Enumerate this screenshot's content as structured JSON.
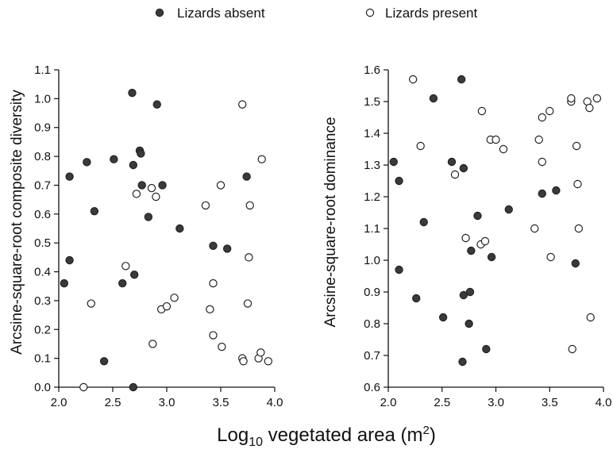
{
  "legend": {
    "placement": "top-center",
    "items": [
      {
        "label": "Lizards absent",
        "marker": "filled"
      },
      {
        "label": "Lizards present",
        "marker": "open"
      }
    ]
  },
  "shared_xlabel": {
    "prefix": "Log",
    "subscript": "10",
    "middle": " vegetated area (m",
    "superscript": "2",
    "suffix": ")"
  },
  "colors": {
    "filled_marker": "#3a3a3a",
    "open_marker_fill": "#ffffff",
    "marker_stroke": "#222222",
    "axis": "#111111"
  },
  "chart_data": [
    {
      "type": "scatter",
      "ylabel": "Arcsine-square-root composite diversity",
      "xlim": [
        2.0,
        4.0
      ],
      "ylim": [
        0.0,
        1.1
      ],
      "xticks": [
        "2.0",
        "2.5",
        "3.0",
        "3.5",
        "4.0"
      ],
      "yticks": [
        "0.0",
        "0.1",
        "0.2",
        "0.3",
        "0.4",
        "0.5",
        "0.6",
        "0.7",
        "0.8",
        "0.9",
        "1.0",
        "1.1"
      ],
      "grid": false,
      "series": [
        {
          "name": "Lizards absent",
          "points": [
            [
              2.05,
              0.36
            ],
            [
              2.1,
              0.44
            ],
            [
              2.1,
              0.73
            ],
            [
              2.26,
              0.78
            ],
            [
              2.33,
              0.61
            ],
            [
              2.42,
              0.09
            ],
            [
              2.51,
              0.79
            ],
            [
              2.59,
              0.36
            ],
            [
              2.68,
              1.02
            ],
            [
              2.69,
              0.77
            ],
            [
              2.7,
              0.39
            ],
            [
              2.69,
              0.0
            ],
            [
              2.75,
              0.82
            ],
            [
              2.76,
              0.81
            ],
            [
              2.77,
              0.7
            ],
            [
              2.83,
              0.59
            ],
            [
              2.91,
              0.98
            ],
            [
              2.96,
              0.7
            ],
            [
              3.12,
              0.55
            ],
            [
              3.43,
              0.49
            ],
            [
              3.56,
              0.48
            ],
            [
              3.74,
              0.73
            ]
          ]
        },
        {
          "name": "Lizards present",
          "points": [
            [
              2.23,
              0.0
            ],
            [
              2.3,
              0.29
            ],
            [
              2.62,
              0.42
            ],
            [
              2.72,
              0.67
            ],
            [
              2.86,
              0.69
            ],
            [
              2.87,
              0.15
            ],
            [
              2.9,
              0.66
            ],
            [
              2.95,
              0.27
            ],
            [
              3.0,
              0.28
            ],
            [
              3.07,
              0.31
            ],
            [
              3.36,
              0.63
            ],
            [
              3.4,
              0.27
            ],
            [
              3.43,
              0.36
            ],
            [
              3.43,
              0.18
            ],
            [
              3.5,
              0.7
            ],
            [
              3.51,
              0.14
            ],
            [
              3.7,
              0.98
            ],
            [
              3.7,
              0.1
            ],
            [
              3.71,
              0.09
            ],
            [
              3.75,
              0.29
            ],
            [
              3.76,
              0.45
            ],
            [
              3.77,
              0.63
            ],
            [
              3.85,
              0.1
            ],
            [
              3.87,
              0.12
            ],
            [
              3.88,
              0.79
            ],
            [
              3.94,
              0.09
            ]
          ]
        }
      ]
    },
    {
      "type": "scatter",
      "ylabel": "Arcsine-square-root dominance",
      "xlim": [
        2.0,
        4.0
      ],
      "ylim": [
        0.6,
        1.6
      ],
      "xticks": [
        "2.0",
        "2.5",
        "3.0",
        "3.5",
        "4.0"
      ],
      "yticks": [
        "0.6",
        "0.7",
        "0.8",
        "0.9",
        "1.0",
        "1.1",
        "1.2",
        "1.3",
        "1.4",
        "1.5",
        "1.6"
      ],
      "grid": false,
      "series": [
        {
          "name": "Lizards absent",
          "points": [
            [
              2.05,
              1.31
            ],
            [
              2.1,
              1.25
            ],
            [
              2.1,
              0.97
            ],
            [
              2.26,
              0.88
            ],
            [
              2.33,
              1.12
            ],
            [
              2.42,
              1.51
            ],
            [
              2.51,
              0.82
            ],
            [
              2.59,
              1.31
            ],
            [
              2.68,
              1.57
            ],
            [
              2.69,
              0.68
            ],
            [
              2.7,
              1.29
            ],
            [
              2.7,
              0.89
            ],
            [
              2.75,
              0.8
            ],
            [
              2.76,
              0.9
            ],
            [
              2.77,
              1.03
            ],
            [
              2.83,
              1.14
            ],
            [
              2.91,
              0.72
            ],
            [
              2.96,
              1.01
            ],
            [
              3.12,
              1.16
            ],
            [
              3.43,
              1.21
            ],
            [
              3.56,
              1.22
            ],
            [
              3.74,
              0.99
            ]
          ]
        },
        {
          "name": "Lizards present",
          "points": [
            [
              2.23,
              1.57
            ],
            [
              2.3,
              1.36
            ],
            [
              2.62,
              1.27
            ],
            [
              2.72,
              1.07
            ],
            [
              2.86,
              1.05
            ],
            [
              2.87,
              1.47
            ],
            [
              2.9,
              1.06
            ],
            [
              2.95,
              1.38
            ],
            [
              3.0,
              1.38
            ],
            [
              3.07,
              1.35
            ],
            [
              3.36,
              1.1
            ],
            [
              3.4,
              1.38
            ],
            [
              3.43,
              1.45
            ],
            [
              3.43,
              1.31
            ],
            [
              3.5,
              1.47
            ],
            [
              3.51,
              1.01
            ],
            [
              3.7,
              1.5
            ],
            [
              3.7,
              1.51
            ],
            [
              3.71,
              0.72
            ],
            [
              3.75,
              1.36
            ],
            [
              3.76,
              1.24
            ],
            [
              3.77,
              1.1
            ],
            [
              3.85,
              1.5
            ],
            [
              3.87,
              1.48
            ],
            [
              3.88,
              0.82
            ],
            [
              3.94,
              1.51
            ]
          ]
        }
      ]
    }
  ]
}
